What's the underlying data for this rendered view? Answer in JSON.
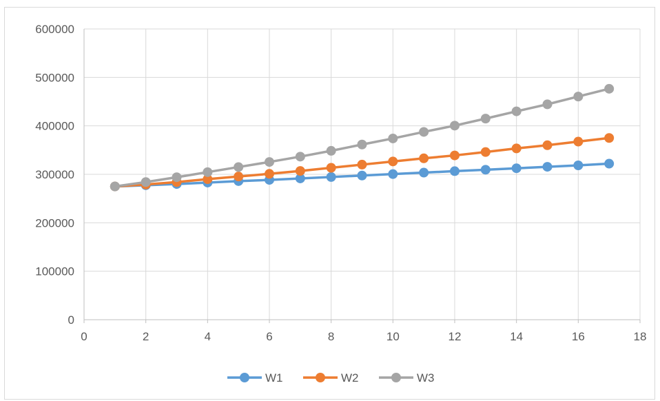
{
  "chart_data": {
    "type": "scatter",
    "title": "",
    "xlabel": "",
    "ylabel": "",
    "xlim": [
      0,
      18
    ],
    "ylim": [
      0,
      600000
    ],
    "x_ticks": [
      0,
      2,
      4,
      6,
      8,
      10,
      12,
      14,
      16,
      18
    ],
    "y_ticks": [
      0,
      100000,
      200000,
      300000,
      400000,
      500000,
      600000
    ],
    "grid": {
      "vertical": true,
      "horizontal": true
    },
    "legend_position": "bottom",
    "x": [
      1,
      2,
      3,
      4,
      5,
      6,
      7,
      8,
      9,
      10,
      11,
      12,
      13,
      14,
      15,
      16,
      17
    ],
    "series": [
      {
        "name": "W1",
        "color": "#5b9bd5",
        "values": [
          275000,
          277500,
          280000,
          283000,
          286000,
          288500,
          291500,
          294500,
          297500,
          300500,
          303500,
          306500,
          309500,
          312500,
          315500,
          318500,
          322000
        ]
      },
      {
        "name": "W2",
        "color": "#ed7d31",
        "values": [
          275000,
          279000,
          284000,
          290000,
          295500,
          301000,
          307000,
          313500,
          320000,
          326500,
          333000,
          339000,
          346000,
          353500,
          360000,
          367500,
          375000
        ]
      },
      {
        "name": "W3",
        "color": "#a5a5a5",
        "values": [
          275000,
          284000,
          294000,
          304500,
          315000,
          325500,
          336500,
          348500,
          361500,
          374000,
          387500,
          400500,
          415000,
          430000,
          444500,
          460500,
          476500
        ]
      }
    ]
  }
}
